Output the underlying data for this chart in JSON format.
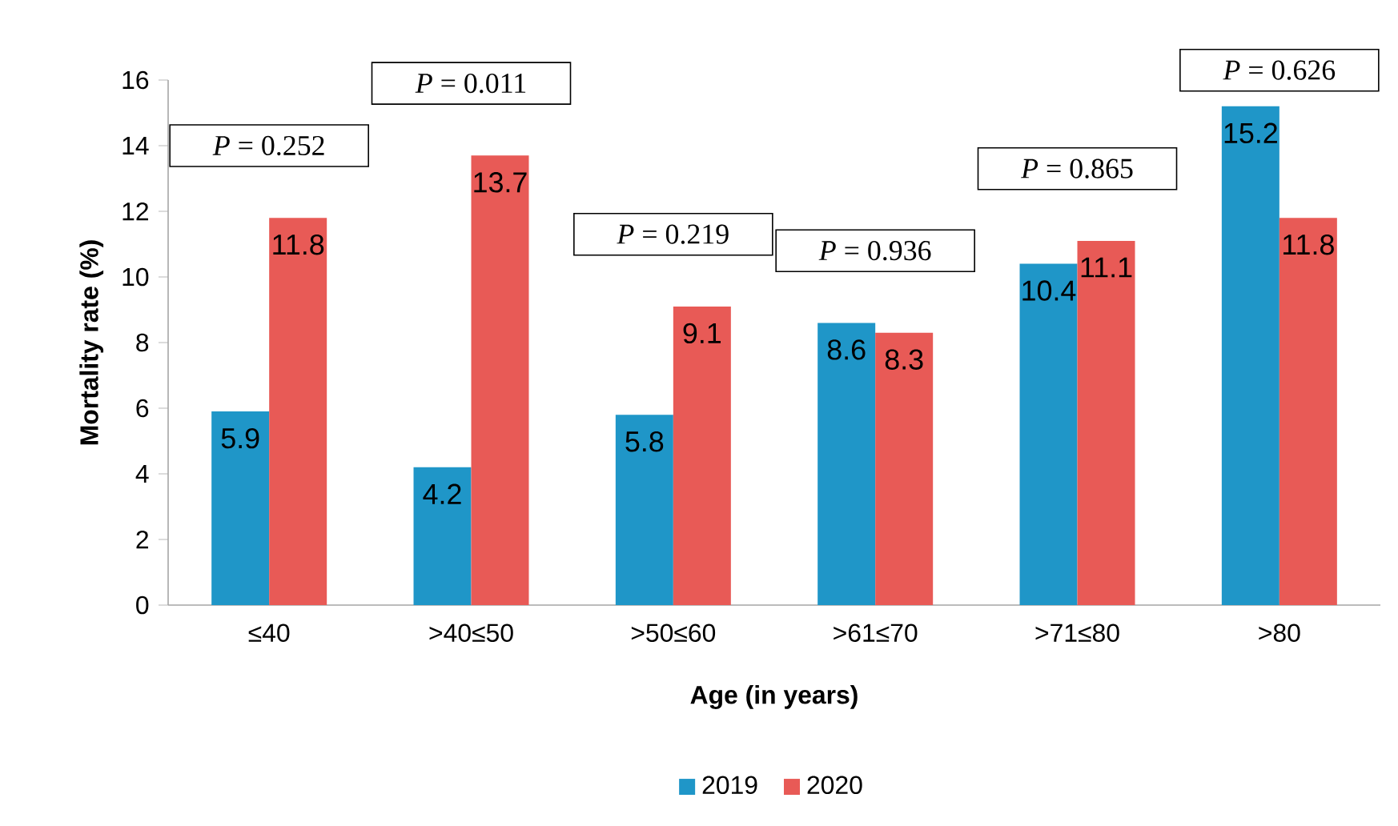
{
  "chart_data": {
    "type": "bar",
    "xlabel": "Age (in years)",
    "ylabel": "Mortality rate (%)",
    "categories": [
      "≤40",
      ">40≤50",
      ">50≤60",
      ">61≤70",
      ">71≤80",
      ">80"
    ],
    "series": [
      {
        "name": "2019",
        "color": "#1f96c8",
        "values": [
          5.9,
          4.2,
          5.8,
          8.6,
          10.4,
          15.2
        ]
      },
      {
        "name": "2020",
        "color": "#e85a56",
        "values": [
          11.8,
          13.7,
          9.1,
          8.3,
          11.1,
          11.8
        ]
      }
    ],
    "ylim": [
      0,
      16
    ],
    "yticks": [
      0,
      2,
      4,
      6,
      8,
      10,
      12,
      14,
      16
    ],
    "data_labels": true,
    "legend": "bottom",
    "grid": false,
    "annotations": [
      "*P* = 0.252",
      "*P* = 0.011",
      "*P* = 0.219",
      "*P* = 0.936",
      "*P* = 0.865",
      "*P* = 0.626"
    ]
  }
}
